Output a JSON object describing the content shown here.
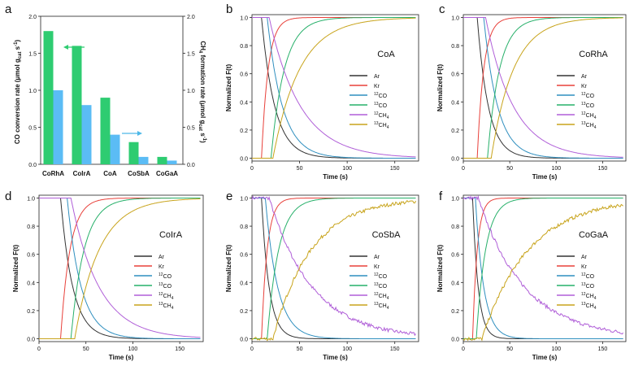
{
  "colors": {
    "Ar": "#333333",
    "Kr": "#e8403a",
    "12CO": "#2f8fbf",
    "13CO": "#27b06a",
    "12CH4": "#b05fd8",
    "13CH4": "#c8a41c",
    "bar_co": "#2ecc71",
    "bar_ch4": "#5bbcf5",
    "arrow": "#2ecc71",
    "arrow2": "#4db8e8"
  },
  "chart_data": [
    {
      "panel": "a",
      "type": "bar",
      "categories": [
        "CoRhA",
        "CoIrA",
        "CoA",
        "CoSbA",
        "CoGaA"
      ],
      "series": [
        {
          "name": "CO conversion rate",
          "axis": "left",
          "values": [
            1.8,
            1.6,
            0.9,
            0.3,
            0.1
          ]
        },
        {
          "name": "CH4 formation rate",
          "axis": "right",
          "values": [
            1.0,
            0.8,
            0.4,
            0.1,
            0.05
          ]
        }
      ],
      "ylabel_left": "CO conversion rate (μmol g",
      "ylabel_left_sub": "cat",
      "ylabel_left_tail": " s",
      "ylabel_left_sup": "-1",
      "ylabel_left_end": ")",
      "ylabel_right": "CH",
      "ylabel_right_sub": "4",
      "ylabel_right_tail": " formation rate (μmol g",
      "ylim_left": [
        0,
        2.0
      ],
      "ylim_right": [
        0,
        2.0
      ],
      "yticks_left": [
        "0.0",
        "0.5",
        "1.0",
        "1.5",
        "2.0"
      ],
      "yticks_right": [
        "0.0",
        "0.5",
        "1.0",
        "1.5",
        "2.0"
      ]
    },
    {
      "panel": "b",
      "catalyst": "CoA",
      "type": "line",
      "params": {
        "Ar": [
          10,
          14
        ],
        "Kr": [
          10,
          7
        ],
        "12CO": [
          16,
          16
        ],
        "13CO": [
          20,
          14
        ],
        "12CH4": [
          18,
          33
        ],
        "13CH4": [
          22,
          28
        ]
      }
    },
    {
      "panel": "c",
      "catalyst": "CoRhA",
      "type": "line",
      "params": {
        "Ar": [
          15,
          12
        ],
        "Kr": [
          15,
          7
        ],
        "12CO": [
          22,
          15
        ],
        "13CO": [
          26,
          13
        ],
        "12CH4": [
          24,
          30
        ],
        "13CH4": [
          30,
          24
        ]
      }
    },
    {
      "panel": "d",
      "catalyst": "CoIrA",
      "type": "line",
      "params": {
        "Ar": [
          23,
          13
        ],
        "Kr": [
          23,
          10
        ],
        "12CO": [
          30,
          15
        ],
        "13CO": [
          34,
          14
        ],
        "12CH4": [
          34,
          30
        ],
        "13CH4": [
          38,
          26
        ]
      }
    },
    {
      "panel": "e",
      "catalyst": "CoSbA",
      "type": "line",
      "params": {
        "Ar": [
          10,
          8
        ],
        "Kr": [
          10,
          6
        ],
        "12CO": [
          14,
          13
        ],
        "13CO": [
          16,
          12
        ],
        "12CH4": [
          18,
          45
        ],
        "13CH4": [
          22,
          40
        ]
      }
    },
    {
      "panel": "f",
      "catalyst": "CoGaA",
      "type": "line",
      "params": {
        "Ar": [
          10,
          6
        ],
        "Kr": [
          10,
          5
        ],
        "12CO": [
          13,
          9
        ],
        "13CO": [
          14,
          10
        ],
        "12CH4": [
          16,
          50
        ],
        "13CH4": [
          20,
          50
        ]
      }
    }
  ],
  "line_common": {
    "xlabel": "Time (s)",
    "ylabel": "Normalized F(t)",
    "xlim": [
      0,
      175
    ],
    "ylim": [
      -0.02,
      1.02
    ],
    "xticks": [
      "0",
      "50",
      "100",
      "150"
    ],
    "yticks": [
      "0.0",
      "0.2",
      "0.4",
      "0.6",
      "0.8",
      "1.0"
    ],
    "legend": [
      {
        "key": "Ar",
        "sup": "",
        "base": "Ar",
        "sub": ""
      },
      {
        "key": "Kr",
        "sup": "",
        "base": "Kr",
        "sub": ""
      },
      {
        "key": "12CO",
        "sup": "12",
        "base": "CO",
        "sub": ""
      },
      {
        "key": "13CO",
        "sup": "13",
        "base": "CO",
        "sub": ""
      },
      {
        "key": "12CH4",
        "sup": "12",
        "base": "CH",
        "sub": "4"
      },
      {
        "key": "13CH4",
        "sup": "13",
        "base": "CH",
        "sub": "4"
      }
    ],
    "decaying": [
      "Ar",
      "12CO",
      "12CH4"
    ]
  },
  "panel_letters": [
    "a",
    "b",
    "c",
    "d",
    "e",
    "f"
  ]
}
